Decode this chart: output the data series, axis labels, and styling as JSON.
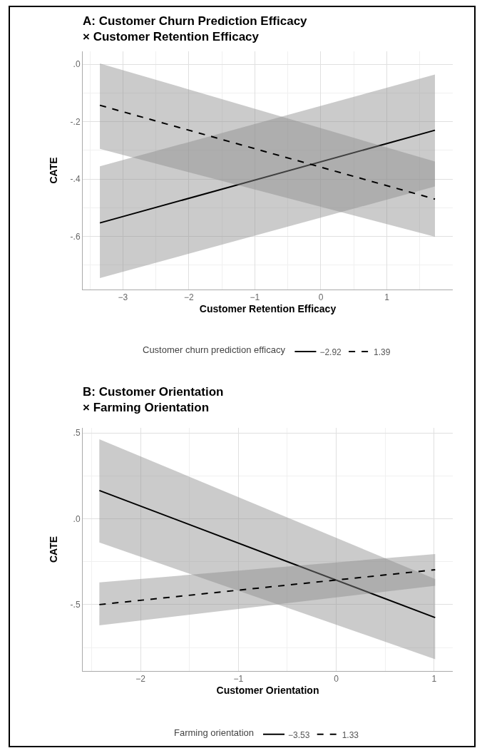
{
  "chart_data": [
    {
      "type": "line",
      "title": "A: Customer Churn Prediction Efficacy\n× Customer Retention Efficacy",
      "xlabel": "Customer Retention Efficacy",
      "ylabel": "CATE",
      "legend_title": "Customer churn prediction efficacy",
      "xlim": [
        -3.61,
        2.0
      ],
      "ylim": [
        -0.785,
        0.045
      ],
      "xticks": [
        {
          "value": -3,
          "label": "−3"
        },
        {
          "value": -2,
          "label": "−2"
        },
        {
          "value": -1,
          "label": "−1"
        },
        {
          "value": 0,
          "label": "0"
        },
        {
          "value": 1,
          "label": "1"
        }
      ],
      "yticks": [
        {
          "value": 0,
          "label": ".0"
        },
        {
          "value": -0.2,
          "label": "-.2"
        },
        {
          "value": -0.4,
          "label": "-.4"
        },
        {
          "value": -0.6,
          "label": "-.6"
        }
      ],
      "grid": true,
      "legend": "bottom",
      "marker": "none",
      "series": [
        {
          "name": "−2.92",
          "color": "#000000",
          "line_style": "solid",
          "x": [
            -3.35,
            1.73
          ],
          "values": [
            -0.553,
            -0.23
          ],
          "lower": [
            -0.745,
            -0.426
          ],
          "upper": [
            -0.356,
            -0.036
          ]
        },
        {
          "name": "1.39",
          "color": "#000000",
          "line_style": "dashed",
          "x": [
            -3.35,
            1.73
          ],
          "values": [
            -0.143,
            -0.47
          ],
          "lower": [
            -0.295,
            -0.601
          ],
          "upper": [
            0.003,
            -0.339
          ]
        }
      ]
    },
    {
      "type": "line",
      "title": "B: Customer Orientation\n× Farming Orientation",
      "xlabel": "Customer Orientation",
      "ylabel": "CATE",
      "legend_title": "Farming orientation",
      "xlim": [
        -2.59,
        1.19
      ],
      "ylim": [
        -0.887,
        0.53
      ],
      "xticks": [
        {
          "value": -2,
          "label": "−2"
        },
        {
          "value": -1,
          "label": "−1"
        },
        {
          "value": 0,
          "label": "0"
        },
        {
          "value": 1,
          "label": "1"
        }
      ],
      "yticks": [
        {
          "value": 0.5,
          "label": ".5"
        },
        {
          "value": 0,
          "label": ".0"
        },
        {
          "value": -0.5,
          "label": "-.5"
        }
      ],
      "grid": true,
      "legend": "bottom",
      "marker": "none",
      "series": [
        {
          "name": "−3.53",
          "color": "#000000",
          "line_style": "solid",
          "x": [
            -2.42,
            1.01
          ],
          "values": [
            0.165,
            -0.576
          ],
          "lower": [
            -0.138,
            -0.818
          ],
          "upper": [
            0.464,
            -0.351
          ]
        },
        {
          "name": "1.33",
          "color": "#000000",
          "line_style": "dashed",
          "x": [
            -2.42,
            1.01
          ],
          "values": [
            -0.5,
            -0.297
          ],
          "lower": [
            -0.621,
            -0.39
          ],
          "upper": [
            -0.371,
            -0.205
          ]
        }
      ]
    }
  ]
}
